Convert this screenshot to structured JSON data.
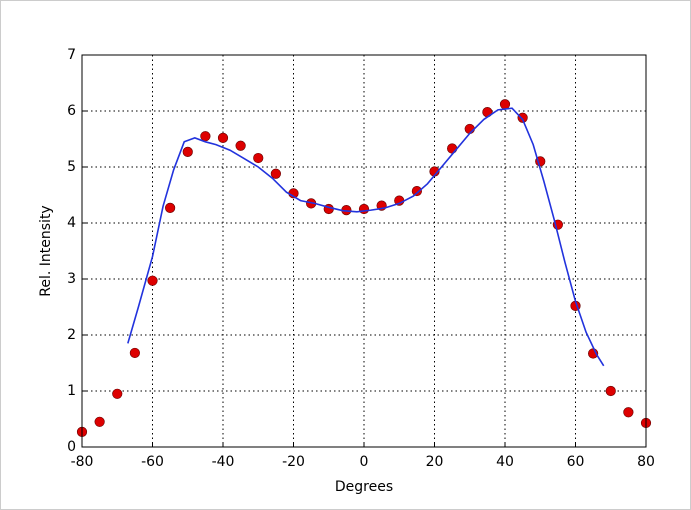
{
  "chart_data": {
    "type": "scatter",
    "xlabel": "Degrees",
    "ylabel": "Rel. Intensity",
    "xlim": [
      -80,
      80
    ],
    "xticks": [
      -80,
      -60,
      -40,
      -20,
      0,
      20,
      40,
      60,
      80
    ],
    "ylim": [
      0,
      7
    ],
    "yticks": [
      0,
      1,
      2,
      3,
      4,
      5,
      6,
      7
    ],
    "grid": true,
    "series": [
      {
        "type": "scatter",
        "color": "#dd0000",
        "x": [
          -80,
          -75,
          -70,
          -65,
          -60,
          -55,
          -50,
          -45,
          -40,
          -35,
          -30,
          -25,
          -20,
          -15,
          -10,
          -5,
          0,
          5,
          10,
          15,
          20,
          25,
          30,
          35,
          40,
          45,
          50,
          55,
          60,
          65,
          70,
          75,
          80
        ],
        "values": [
          0.27,
          0.45,
          0.95,
          1.68,
          2.97,
          4.27,
          5.27,
          5.55,
          5.52,
          5.38,
          5.16,
          4.88,
          4.53,
          4.35,
          4.25,
          4.23,
          4.25,
          4.31,
          4.4,
          4.57,
          4.92,
          5.33,
          5.68,
          5.98,
          6.12,
          5.88,
          5.1,
          3.97,
          2.52,
          1.67,
          1.0,
          0.62,
          0.43
        ]
      },
      {
        "type": "line",
        "color": "#2233dd",
        "x": [
          -67,
          -64,
          -60,
          -57,
          -54,
          -51,
          -48,
          -45,
          -42,
          -38,
          -34,
          -30,
          -26,
          -22,
          -18,
          -14,
          -10,
          -6,
          -2,
          2,
          6,
          10,
          14,
          18,
          22,
          26,
          30,
          34,
          38,
          42,
          45,
          48,
          51,
          54,
          57,
          60,
          63,
          66,
          68
        ],
        "values": [
          1.85,
          2.5,
          3.4,
          4.3,
          4.95,
          5.45,
          5.52,
          5.45,
          5.4,
          5.3,
          5.15,
          5.0,
          4.8,
          4.55,
          4.4,
          4.35,
          4.28,
          4.22,
          4.2,
          4.23,
          4.27,
          4.35,
          4.48,
          4.7,
          5.0,
          5.3,
          5.6,
          5.85,
          6.02,
          6.05,
          5.85,
          5.4,
          4.75,
          4.05,
          3.3,
          2.6,
          2.05,
          1.65,
          1.45
        ]
      }
    ]
  }
}
